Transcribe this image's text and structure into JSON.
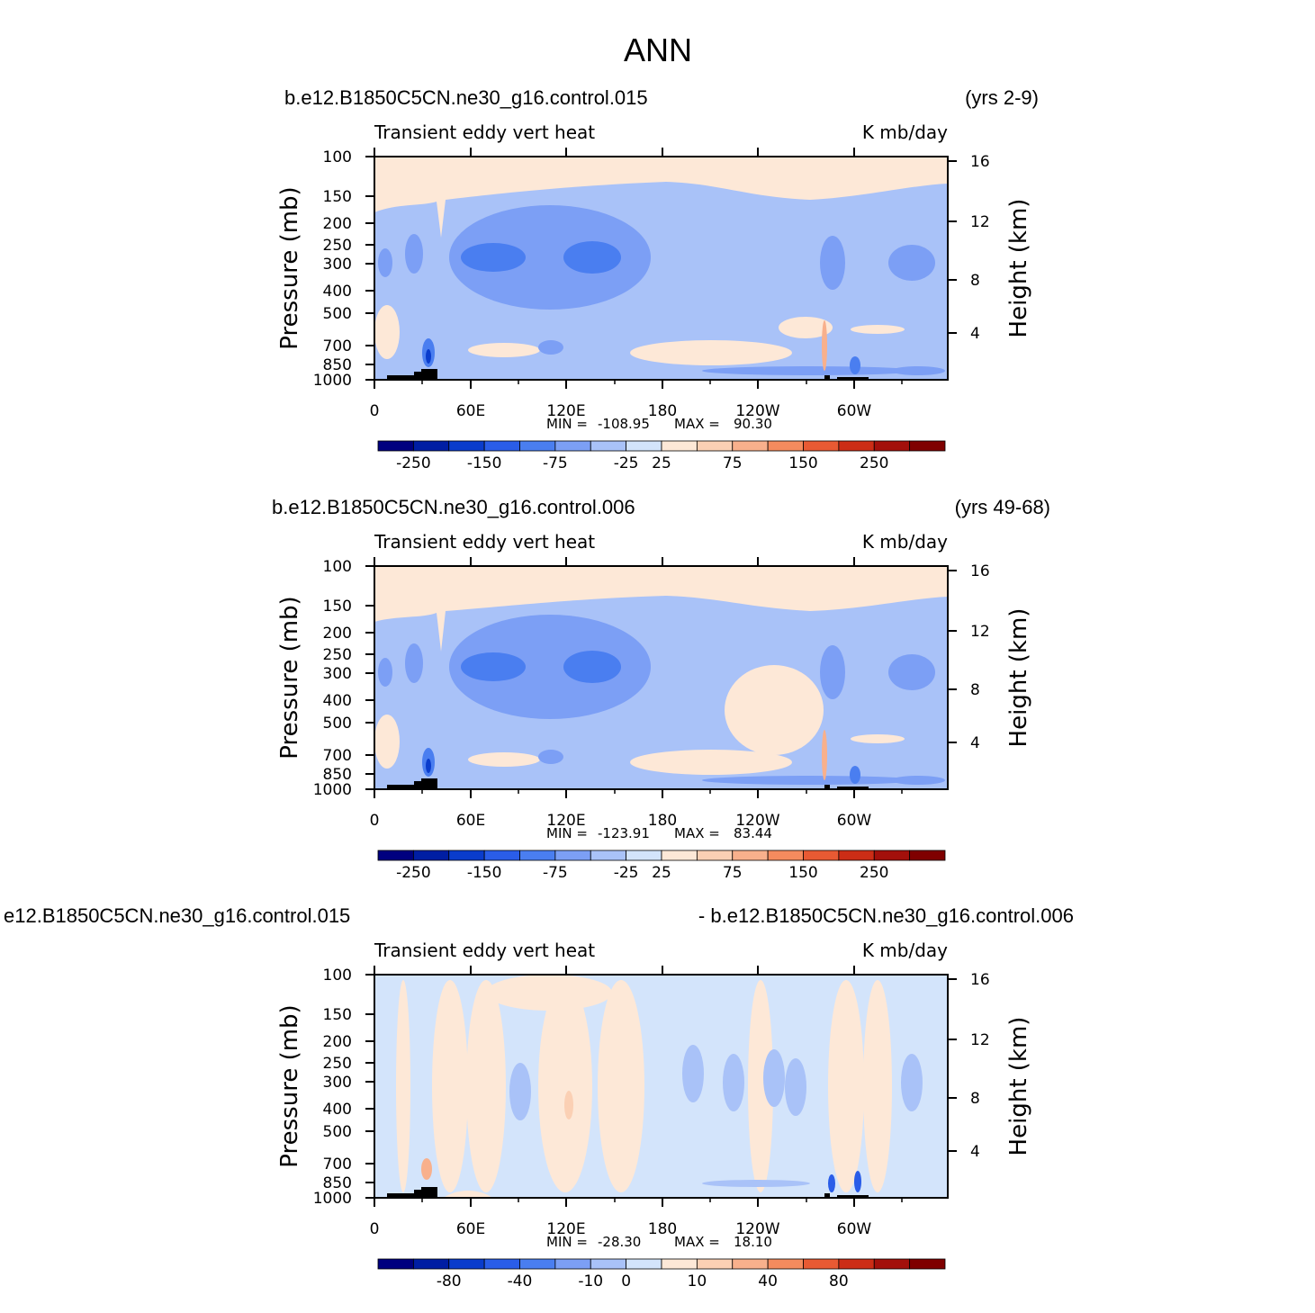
{
  "figure": {
    "title": "ANN"
  },
  "colors": {
    "frame": "#000000",
    "topography": "#000000",
    "scale_panel_1_2": [
      "#00007f",
      "#001ea3",
      "#0a3ccc",
      "#2a5de8",
      "#4a7ef0",
      "#7c9ff5",
      "#a9c2f8",
      "#d3e4fb",
      "#fde8d7",
      "#fbd0b4",
      "#f8b08c",
      "#f48b5e",
      "#e85a33",
      "#cc2d16",
      "#a3100b",
      "#7f0000"
    ],
    "scale_panel_3": [
      "#00007f",
      "#001ea3",
      "#0a3ccc",
      "#2a5de8",
      "#4a7ef0",
      "#7c9ff5",
      "#a9c2f8",
      "#d3e4fb",
      "#fde8d7",
      "#fbd0b4",
      "#f8b08c",
      "#f48b5e",
      "#e85a33",
      "#cc2d16",
      "#a3100b",
      "#7f0000"
    ]
  },
  "chart_data": [
    {
      "type": "heatmap",
      "case_left": "b.e12.B1850C5CN.ne30_g16.control.015",
      "case_right": "(yrs 2-9)",
      "field_label": "Transient eddy vert heat",
      "units_label": "K mb/day",
      "ylabel_left": "Pressure (mb)",
      "ylabel_right": "Height (km)",
      "x_ticks": [
        "0",
        "60E",
        "120E",
        "180",
        "120W",
        "60W"
      ],
      "y_ticks_left": [
        "100",
        "150",
        "200",
        "250",
        "300",
        "400",
        "500",
        "700",
        "850",
        "1000"
      ],
      "y_ticks_right": [
        "16",
        "12",
        "8",
        "4"
      ],
      "stats": {
        "min_label": "MIN =",
        "min_value": "-108.95",
        "max_label": "MAX =",
        "max_value": "90.30"
      },
      "min": -108.95,
      "max": 90.3,
      "colorbar_labels": [
        "-250",
        "-150",
        "-75",
        "-25",
        "25",
        "75",
        "150",
        "250"
      ]
    },
    {
      "type": "heatmap",
      "case_left": "b.e12.B1850C5CN.ne30_g16.control.006",
      "case_right": "(yrs 49-68)",
      "field_label": "Transient eddy vert heat",
      "units_label": "K mb/day",
      "ylabel_left": "Pressure (mb)",
      "ylabel_right": "Height (km)",
      "x_ticks": [
        "0",
        "60E",
        "120E",
        "180",
        "120W",
        "60W"
      ],
      "y_ticks_left": [
        "100",
        "150",
        "200",
        "250",
        "300",
        "400",
        "500",
        "700",
        "850",
        "1000"
      ],
      "y_ticks_right": [
        "16",
        "12",
        "8",
        "4"
      ],
      "stats": {
        "min_label": "MIN =",
        "min_value": "-123.91",
        "max_label": "MAX =",
        "max_value": "83.44"
      },
      "min": -123.91,
      "max": 83.44,
      "colorbar_labels": [
        "-250",
        "-150",
        "-75",
        "-25",
        "25",
        "75",
        "150",
        "250"
      ]
    },
    {
      "type": "heatmap",
      "case_left": "e12.B1850C5CN.ne30_g16.control.015",
      "case_right": "- b.e12.B1850C5CN.ne30_g16.control.006",
      "field_label": "Transient eddy vert heat",
      "units_label": "K mb/day",
      "ylabel_left": "Pressure (mb)",
      "ylabel_right": "Height (km)",
      "x_ticks": [
        "0",
        "60E",
        "120E",
        "180",
        "120W",
        "60W"
      ],
      "y_ticks_left": [
        "100",
        "150",
        "200",
        "250",
        "300",
        "400",
        "500",
        "700",
        "850",
        "1000"
      ],
      "y_ticks_right": [
        "16",
        "12",
        "8",
        "4"
      ],
      "stats": {
        "min_label": "MIN =",
        "min_value": "-28.30",
        "max_label": "MAX =",
        "max_value": "18.10"
      },
      "min": -28.3,
      "max": 18.1,
      "colorbar_labels": [
        "-80",
        "-40",
        "-10",
        "0",
        "10",
        "40",
        "80"
      ]
    }
  ]
}
